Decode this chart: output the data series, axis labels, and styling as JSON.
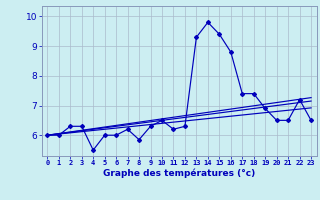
{
  "x": [
    0,
    1,
    2,
    3,
    4,
    5,
    6,
    7,
    8,
    9,
    10,
    11,
    12,
    13,
    14,
    15,
    16,
    17,
    18,
    19,
    20,
    21,
    22,
    23
  ],
  "temp_line": [
    6.0,
    6.0,
    6.3,
    6.3,
    5.5,
    6.0,
    6.0,
    6.2,
    5.85,
    6.3,
    6.5,
    6.2,
    6.3,
    9.3,
    9.8,
    9.4,
    8.8,
    7.4,
    7.4,
    6.9,
    6.5,
    6.5,
    7.2,
    6.5
  ],
  "trend1": [
    6.0,
    6.04,
    6.08,
    6.12,
    6.16,
    6.2,
    6.24,
    6.28,
    6.32,
    6.36,
    6.4,
    6.44,
    6.48,
    6.52,
    6.56,
    6.6,
    6.64,
    6.68,
    6.72,
    6.76,
    6.8,
    6.84,
    6.88,
    6.92
  ],
  "trend2": [
    6.0,
    6.05,
    6.1,
    6.15,
    6.2,
    6.25,
    6.3,
    6.35,
    6.4,
    6.45,
    6.5,
    6.55,
    6.6,
    6.65,
    6.7,
    6.75,
    6.8,
    6.85,
    6.9,
    6.95,
    7.0,
    7.05,
    7.1,
    7.15
  ],
  "trend3": [
    6.0,
    6.055,
    6.11,
    6.165,
    6.22,
    6.275,
    6.33,
    6.385,
    6.44,
    6.495,
    6.55,
    6.605,
    6.66,
    6.715,
    6.77,
    6.825,
    6.88,
    6.935,
    6.99,
    7.045,
    7.1,
    7.155,
    7.21,
    7.265
  ],
  "line_color": "#0000bb",
  "bg_color": "#cceef2",
  "grid_color": "#aabbcc",
  "xlabel": "Graphe des températures (°c)",
  "ylim": [
    5.3,
    10.35
  ],
  "xlim": [
    -0.5,
    23.5
  ],
  "yticks": [
    6,
    7,
    8,
    9,
    10
  ],
  "xticks": [
    0,
    1,
    2,
    3,
    4,
    5,
    6,
    7,
    8,
    9,
    10,
    11,
    12,
    13,
    14,
    15,
    16,
    17,
    18,
    19,
    20,
    21,
    22,
    23
  ]
}
